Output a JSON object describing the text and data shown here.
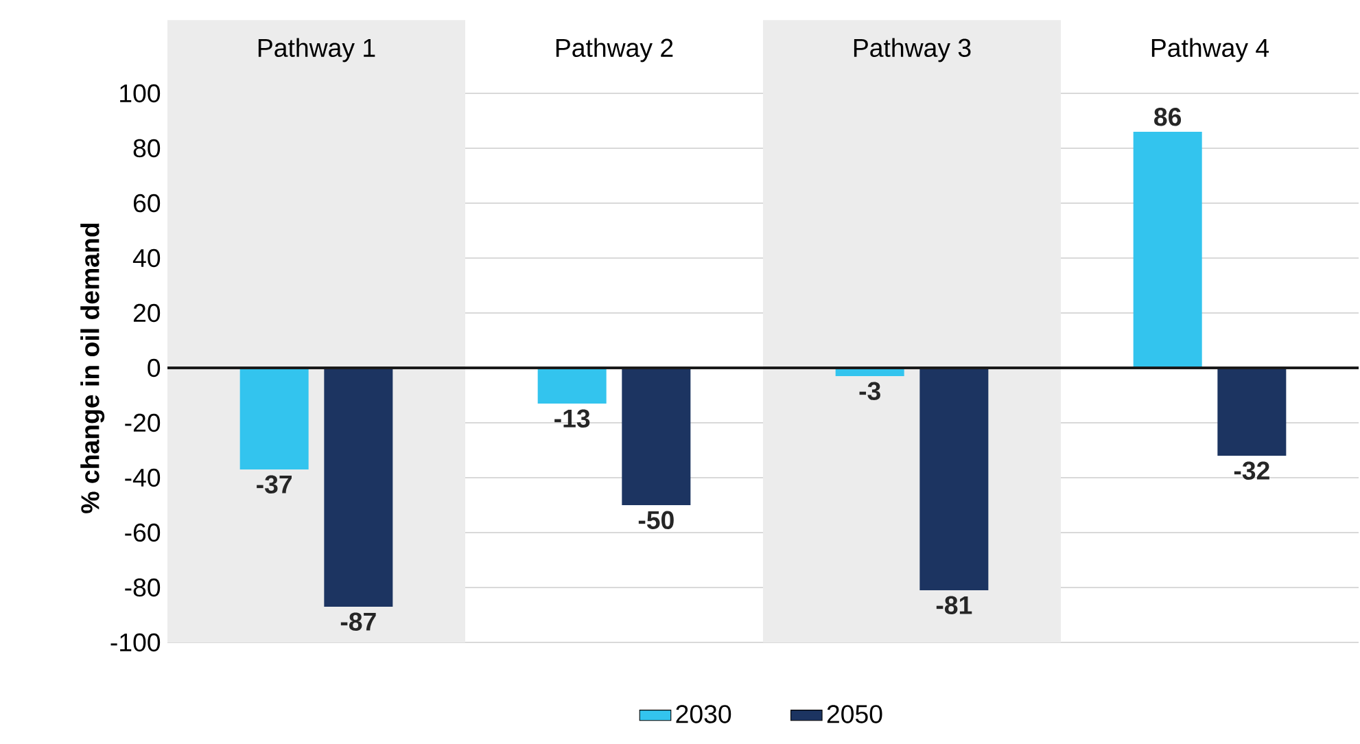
{
  "chart_data": {
    "type": "bar",
    "ylabel": "% change in oil demand",
    "categories": [
      "Pathway 1",
      "Pathway 2",
      "Pathway 3",
      "Pathway 4"
    ],
    "series": [
      {
        "name": "2030",
        "color": "#33c4ee",
        "values": [
          -37,
          -13,
          -3,
          86
        ]
      },
      {
        "name": "2050",
        "color": "#1c3461",
        "values": [
          -87,
          -50,
          -81,
          -32
        ]
      }
    ],
    "ylim": [
      -100,
      100
    ],
    "yticks": [
      -100,
      -80,
      -60,
      -40,
      -20,
      0,
      20,
      40,
      60,
      80,
      100
    ],
    "grid": "y",
    "legend": "bottom",
    "data_labels": true,
    "ref_lines": [
      {
        "axis": "y",
        "value": 0,
        "color": "#1a1a1a"
      }
    ],
    "bands": [
      {
        "axis": "x",
        "from": "Pathway 1",
        "to": "Pathway 1",
        "color": "#ececec"
      },
      {
        "axis": "x",
        "from": "Pathway 3",
        "to": "Pathway 3",
        "color": "#ececec"
      }
    ]
  }
}
